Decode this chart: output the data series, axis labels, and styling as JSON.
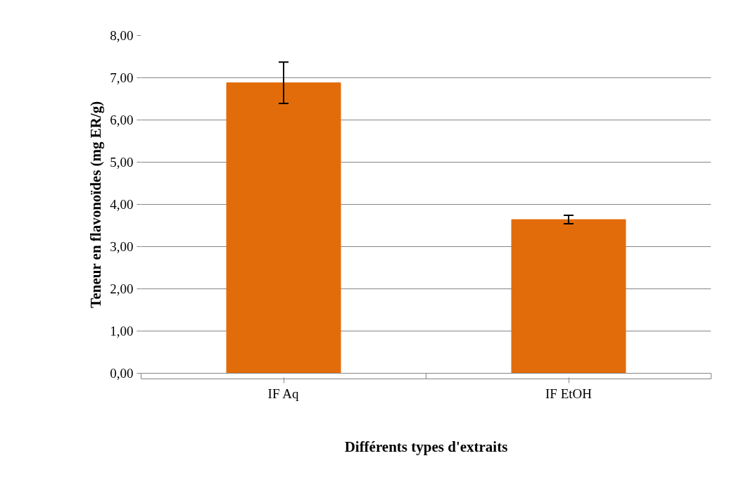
{
  "chart_data": {
    "type": "bar",
    "xlabel": "Différents types d'extraits",
    "ylabel": "Teneur en flavonoïdes (mg ER/g)",
    "categories": [
      "IF Aq",
      "IF EtOH"
    ],
    "values": [
      6.88,
      3.64
    ],
    "errors": [
      0.49,
      0.1
    ],
    "color": "#e36c0a",
    "ylim": [
      0,
      8
    ],
    "yticks": [
      {
        "value": 0,
        "label": "0,00"
      },
      {
        "value": 1,
        "label": "1,00"
      },
      {
        "value": 2,
        "label": "2,00"
      },
      {
        "value": 3,
        "label": "3,00"
      },
      {
        "value": 4,
        "label": "4,00"
      },
      {
        "value": 5,
        "label": "5,00"
      },
      {
        "value": 6,
        "label": "6,00"
      },
      {
        "value": 7,
        "label": "7,00"
      },
      {
        "value": 8,
        "label": "8,00"
      }
    ],
    "grid": "y"
  }
}
